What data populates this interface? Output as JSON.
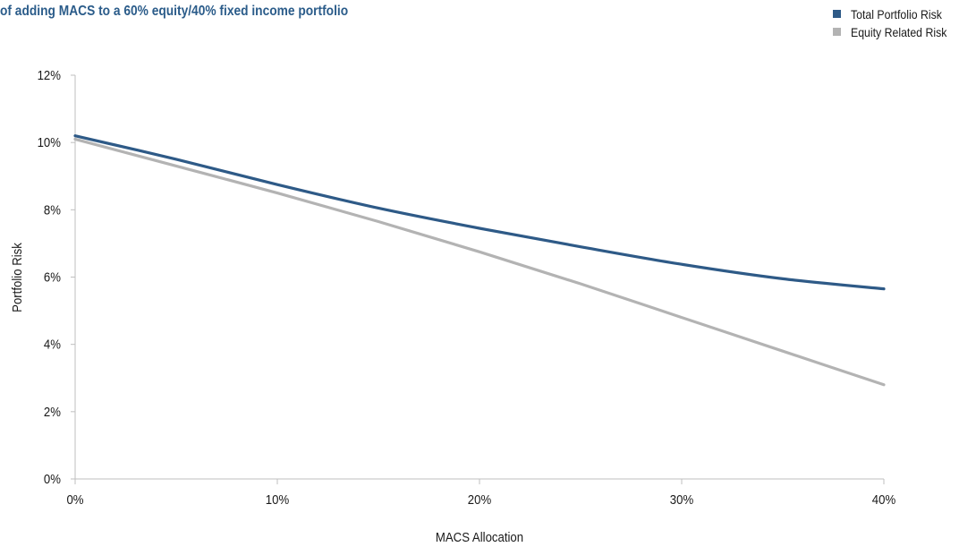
{
  "chart_data": {
    "type": "line",
    "title": "of adding MACS to a 60% equity/40% fixed income portfolio",
    "xlabel": "MACS Allocation",
    "ylabel": "Portfolio Risk",
    "x_tick_labels": [
      "0%",
      "10%",
      "20%",
      "30%",
      "40%"
    ],
    "y_tick_labels": [
      "0%",
      "2%",
      "4%",
      "6%",
      "8%",
      "10%",
      "12%"
    ],
    "xlim": [
      0,
      40
    ],
    "ylim": [
      0,
      12
    ],
    "grid": false,
    "legend_position": "top-right",
    "x": [
      0,
      5,
      10,
      15,
      20,
      25,
      30,
      35,
      40
    ],
    "series": [
      {
        "name": "Total Portfolio Risk",
        "color": "#2e5a87",
        "values": [
          10.2,
          9.5,
          8.75,
          8.05,
          7.45,
          6.9,
          6.38,
          5.95,
          5.65
        ]
      },
      {
        "name": "Equity Related Risk",
        "color": "#b3b3b3",
        "values": [
          10.1,
          9.3,
          8.5,
          7.65,
          6.75,
          5.8,
          4.8,
          3.8,
          2.8
        ]
      }
    ]
  }
}
